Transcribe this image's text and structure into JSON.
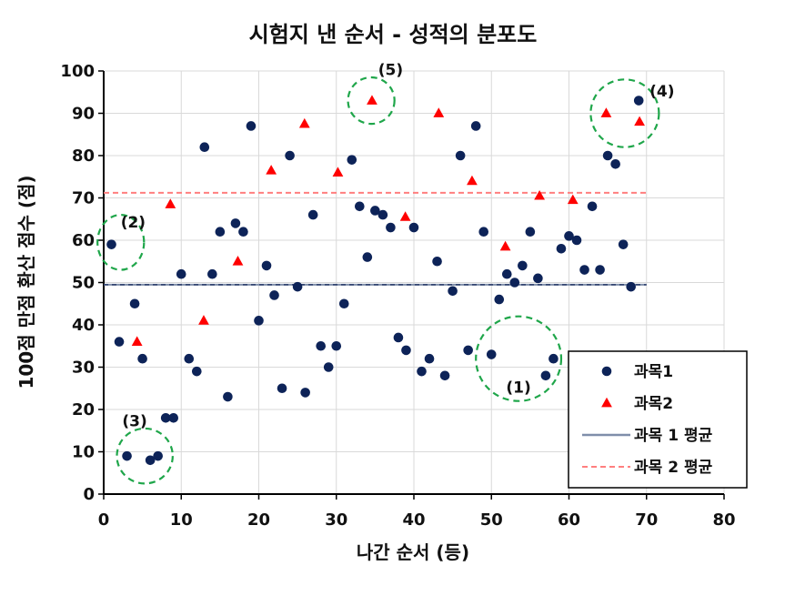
{
  "chart_data": {
    "type": "scatter",
    "title": "시험지 낸 순서 - 성적의 분포도",
    "xlabel": "나간 순서 (등)",
    "ylabel": "100점 만점 환산 점수 (점)",
    "xlim": [
      0,
      80
    ],
    "ylim": [
      0,
      100
    ],
    "xticks": [
      0,
      10,
      20,
      30,
      40,
      50,
      60,
      70,
      80
    ],
    "yticks": [
      0,
      10,
      20,
      30,
      40,
      50,
      60,
      70,
      80,
      90,
      100
    ],
    "grid": true,
    "legend_position": "bottom-right",
    "series": [
      {
        "name": "과목1",
        "color": "#0d2358",
        "marker": "circle",
        "points": [
          [
            1,
            59
          ],
          [
            2,
            36
          ],
          [
            3,
            9
          ],
          [
            4,
            45
          ],
          [
            5,
            32
          ],
          [
            6,
            8
          ],
          [
            7,
            9
          ],
          [
            8,
            18
          ],
          [
            9,
            18
          ],
          [
            10,
            52
          ],
          [
            11,
            32
          ],
          [
            12,
            29
          ],
          [
            13,
            82
          ],
          [
            14,
            52
          ],
          [
            15,
            62
          ],
          [
            16,
            23
          ],
          [
            17,
            64
          ],
          [
            18,
            62
          ],
          [
            19,
            87
          ],
          [
            20,
            41
          ],
          [
            21,
            54
          ],
          [
            22,
            47
          ],
          [
            23,
            25
          ],
          [
            24,
            80
          ],
          [
            25,
            49
          ],
          [
            26,
            24
          ],
          [
            27,
            66
          ],
          [
            28,
            35
          ],
          [
            29,
            30
          ],
          [
            30,
            35
          ],
          [
            31,
            45
          ],
          [
            32,
            79
          ],
          [
            33,
            68
          ],
          [
            34,
            56
          ],
          [
            35,
            67
          ],
          [
            36,
            66
          ],
          [
            37,
            63
          ],
          [
            38,
            37
          ],
          [
            39,
            34
          ],
          [
            40,
            63
          ],
          [
            41,
            29
          ],
          [
            42,
            32
          ],
          [
            43,
            55
          ],
          [
            44,
            28
          ],
          [
            45,
            48
          ],
          [
            46,
            80
          ],
          [
            47,
            34
          ],
          [
            48,
            87
          ],
          [
            49,
            62
          ],
          [
            50,
            33
          ],
          [
            51,
            46
          ],
          [
            52,
            52
          ],
          [
            53,
            50
          ],
          [
            54,
            54
          ],
          [
            55,
            62
          ],
          [
            56,
            51
          ],
          [
            57,
            28
          ],
          [
            58,
            32
          ],
          [
            59,
            58
          ],
          [
            60,
            61
          ],
          [
            61,
            60
          ],
          [
            62,
            53
          ],
          [
            63,
            68
          ],
          [
            64,
            53
          ],
          [
            65,
            80
          ],
          [
            66,
            78
          ],
          [
            67,
            59
          ],
          [
            68,
            49
          ],
          [
            69,
            93
          ]
        ]
      },
      {
        "name": "과목2",
        "color": "#ff0000",
        "marker": "triangle",
        "points": [
          [
            4.3,
            36
          ],
          [
            8.6,
            68.5
          ],
          [
            12.9,
            41
          ],
          [
            17.3,
            55
          ],
          [
            21.6,
            76.5
          ],
          [
            25.9,
            87.5
          ],
          [
            30.2,
            76
          ],
          [
            34.6,
            93
          ],
          [
            38.9,
            65.5
          ],
          [
            43.2,
            90
          ],
          [
            47.5,
            74
          ],
          [
            51.8,
            58.5
          ],
          [
            56.2,
            70.5
          ],
          [
            60.5,
            69.5
          ],
          [
            64.8,
            90
          ],
          [
            69.1,
            88
          ]
        ]
      }
    ],
    "reference_lines": [
      {
        "name": "과목 1 평균",
        "y": 49.5,
        "x_range": [
          0,
          70
        ],
        "color": "#7f8eaa",
        "style": "solid-over-dashed"
      },
      {
        "name": "과목 2 평균",
        "y": 71.2,
        "x_range": [
          0,
          70
        ],
        "color": "#ff7f7f",
        "style": "dashed"
      }
    ],
    "annotations": [
      {
        "label": "(1)",
        "circle_center": [
          53.5,
          32
        ],
        "circle_r": [
          5.5,
          10
        ],
        "label_at": [
          53.5,
          24
        ]
      },
      {
        "label": "(2)",
        "circle_center": [
          2.2,
          59.5
        ],
        "circle_r": [
          3,
          6.5
        ],
        "label_at": [
          3.8,
          63
        ]
      },
      {
        "label": "(3)",
        "circle_center": [
          5.3,
          9
        ],
        "circle_r": [
          3.6,
          6.5
        ],
        "label_at": [
          4,
          16
        ]
      },
      {
        "label": "(4)",
        "circle_center": [
          67.2,
          90
        ],
        "circle_r": [
          4.4,
          8
        ],
        "label_at": [
          72,
          94
        ]
      },
      {
        "label": "(5)",
        "circle_center": [
          34.5,
          93
        ],
        "circle_r": [
          3,
          5.5
        ],
        "label_at": [
          37,
          99
        ]
      }
    ],
    "annotation_color": "#1fa64a"
  }
}
